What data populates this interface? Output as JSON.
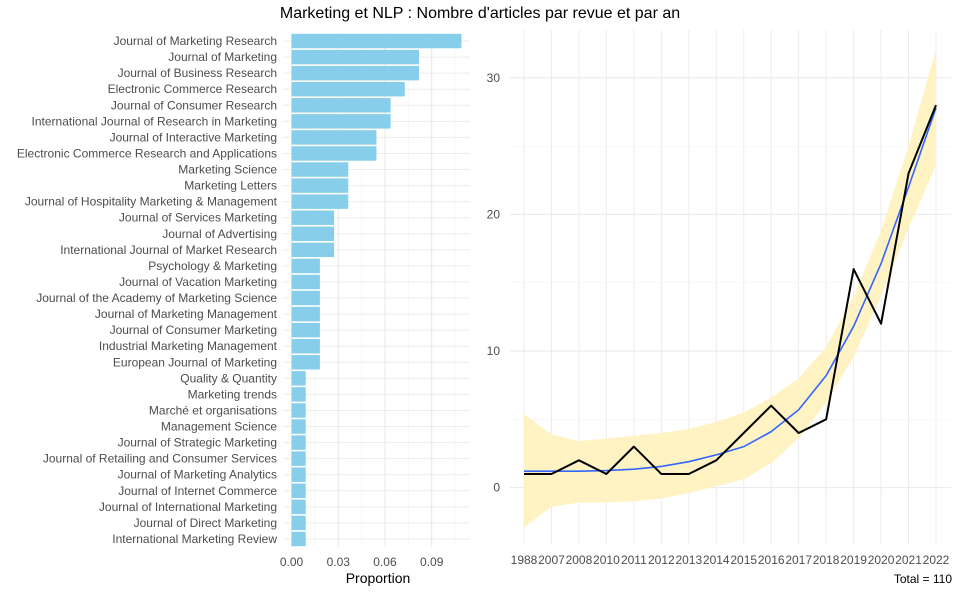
{
  "title": "Marketing et NLP : Nombre d'articles par revue et par an",
  "caption": "Total = 110",
  "chart_data": [
    {
      "type": "bar",
      "orientation": "horizontal",
      "categories": [
        "Journal of Marketing Research",
        "Journal of Marketing",
        "Journal of Business Research",
        "Electronic Commerce Research",
        "Journal of Consumer Research",
        "International Journal of Research in Marketing",
        "Journal of Interactive Marketing",
        "Electronic Commerce Research and Applications",
        "Marketing Science",
        "Marketing Letters",
        "Journal of Hospitality Marketing & Management",
        "Journal of Services Marketing",
        "Journal of Advertising",
        "International Journal of Market Research",
        "Psychology & Marketing",
        "Journal of Vacation Marketing",
        "Journal of the Academy of Marketing Science",
        "Journal of Marketing Management",
        "Journal of Consumer Marketing",
        "Industrial Marketing Management",
        "European Journal of Marketing",
        "Quality & Quantity",
        "Marketing trends",
        "Marché et organisations",
        "Management Science",
        "Journal of Strategic Marketing",
        "Journal of Retailing and Consumer Services",
        "Journal of Marketing Analytics",
        "Journal of Internet Commerce",
        "Journal of International Marketing",
        "Journal of Direct Marketing",
        "International Marketing Review"
      ],
      "values": [
        0.1091,
        0.0818,
        0.0818,
        0.0727,
        0.0636,
        0.0636,
        0.0545,
        0.0545,
        0.0364,
        0.0364,
        0.0364,
        0.0273,
        0.0273,
        0.0273,
        0.0182,
        0.0182,
        0.0182,
        0.0182,
        0.0182,
        0.0182,
        0.0182,
        0.0091,
        0.0091,
        0.0091,
        0.0091,
        0.0091,
        0.0091,
        0.0091,
        0.0091,
        0.0091,
        0.0091,
        0.0091
      ],
      "xlabel": "Proportion",
      "xticks": [
        "0.00",
        "0.03",
        "0.06",
        "0.09"
      ],
      "xlim": [
        -0.0055,
        0.1146
      ],
      "bar_color": "#87CEEB",
      "grid": true
    },
    {
      "type": "line",
      "x": [
        "1988",
        "2007",
        "2008",
        "2010",
        "2011",
        "2012",
        "2013",
        "2014",
        "2015",
        "2016",
        "2017",
        "2018",
        "2019",
        "2020",
        "2021",
        "2022"
      ],
      "series": [
        {
          "role": "observed",
          "color": "#000000",
          "values": [
            1,
            1,
            2,
            1,
            3,
            1,
            1,
            2,
            4,
            6,
            4,
            5,
            16,
            12,
            23,
            28
          ]
        },
        {
          "role": "smooth-fit",
          "color": "#3366FF",
          "values": [
            1.2,
            1.2,
            1.2,
            1.25,
            1.35,
            1.55,
            1.9,
            2.4,
            3.0,
            4.1,
            5.7,
            8.2,
            11.8,
            16.4,
            22.0,
            27.8
          ]
        }
      ],
      "band": {
        "color": "#FFF3C4",
        "lower": [
          -2.9,
          -1.4,
          -1.1,
          -1.1,
          -1.0,
          -0.8,
          -0.4,
          0.1,
          0.6,
          1.8,
          3.6,
          6.2,
          9.6,
          14.0,
          19.0,
          23.6
        ],
        "upper": [
          5.4,
          3.9,
          3.4,
          3.6,
          3.8,
          4.0,
          4.3,
          4.8,
          5.5,
          6.6,
          8.0,
          10.3,
          14.0,
          18.8,
          25.0,
          32.1
        ]
      },
      "yticks": [
        "0",
        "10",
        "20",
        "30"
      ],
      "ylim": [
        -4.2,
        33.5
      ],
      "grid": true
    }
  ]
}
